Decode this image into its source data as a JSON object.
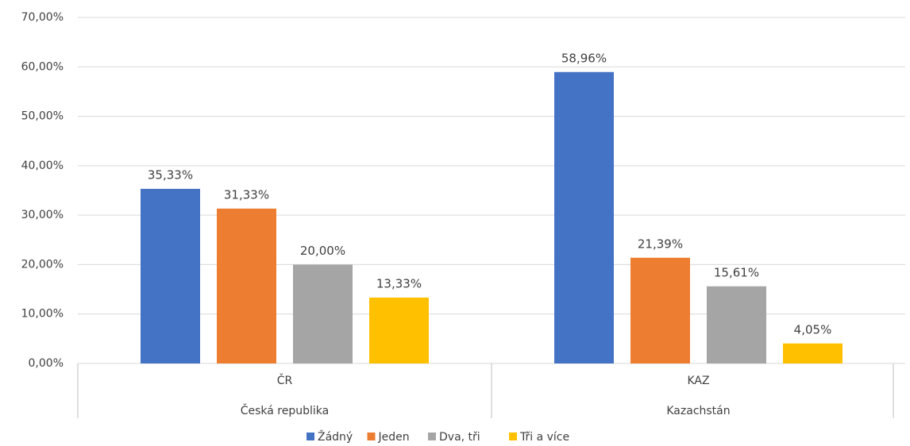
{
  "chart_data": {
    "type": "bar",
    "categories": [
      "ČR",
      "KAZ"
    ],
    "category_groups": [
      "Česká republika",
      "Kazachstán"
    ],
    "series": [
      {
        "name": "Žádný",
        "color": "#4472c4",
        "values": [
          35.33,
          58.96
        ],
        "value_labels": [
          "35,33%",
          "58,96%"
        ]
      },
      {
        "name": "Jeden",
        "color": "#ed7d31",
        "values": [
          31.33,
          21.39
        ],
        "value_labels": [
          "31,33%",
          "21,39%"
        ]
      },
      {
        "name": "Dva, tři",
        "color": "#a5a5a5",
        "values": [
          20.0,
          15.61
        ],
        "value_labels": [
          "20,00%",
          "15,61%"
        ]
      },
      {
        "name": "Tři a více",
        "color": "#ffc000",
        "values": [
          13.33,
          4.05
        ],
        "value_labels": [
          "13,33%",
          "4,05%"
        ]
      }
    ],
    "ylim": [
      0,
      70
    ],
    "yticks": [
      {
        "value": 0,
        "label": "0,00%"
      },
      {
        "value": 10,
        "label": "10,00%"
      },
      {
        "value": 20,
        "label": "20,00%"
      },
      {
        "value": 30,
        "label": "30,00%"
      },
      {
        "value": 40,
        "label": "40,00%"
      },
      {
        "value": 50,
        "label": "50,00%"
      },
      {
        "value": 60,
        "label": "60,00%"
      },
      {
        "value": 70,
        "label": "70,00%"
      }
    ],
    "grid": true,
    "legend": "bottom"
  }
}
